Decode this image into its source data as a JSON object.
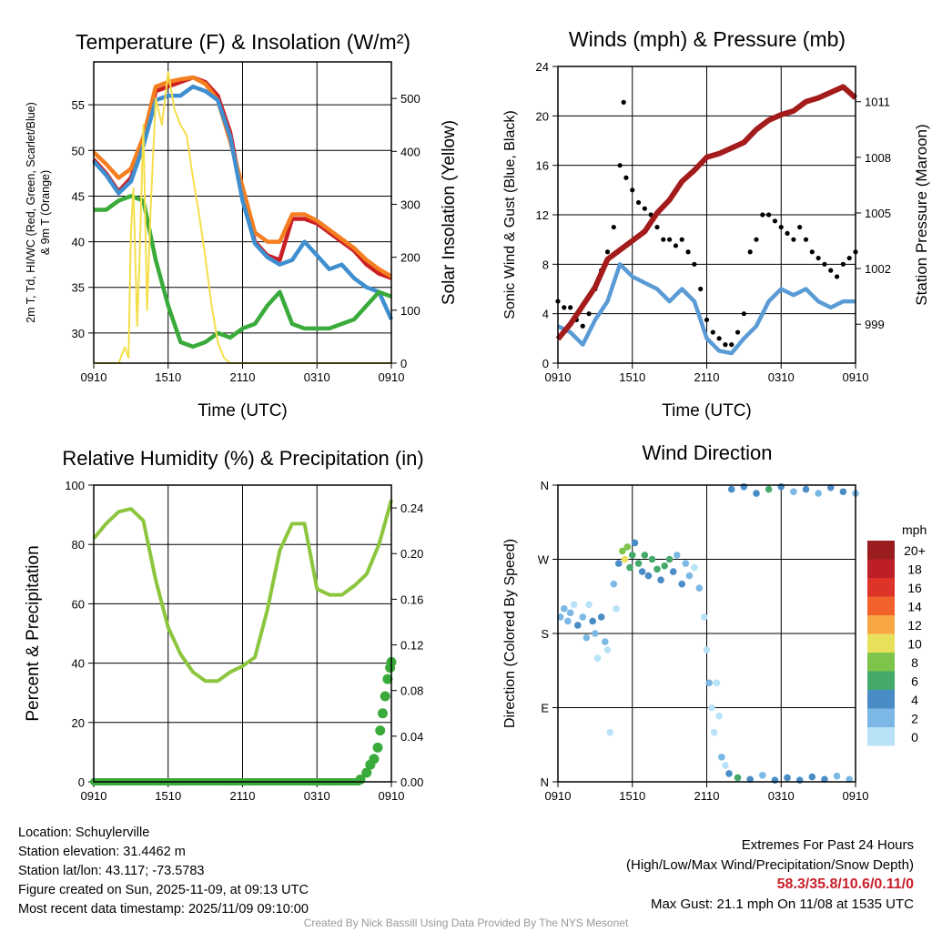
{
  "colors": {
    "temp": "#cc1f24",
    "temp9m": "#f57f20",
    "windchill": "#3f8fd0",
    "dewpoint": "#3aab3a",
    "insolation": "#f5de4a",
    "wind": "#5b9bd5",
    "gust": "#000000",
    "pressure": "#a31b1b",
    "rh": "#8cc63f",
    "precip": "#3aab3a"
  },
  "x_ticks": [
    "0910",
    "1510",
    "2110",
    "0310",
    "0910"
  ],
  "chart_data": [
    {
      "type": "line",
      "id": "temp",
      "title": "Temperature (F) & Insolation (W/m²)",
      "xlabel": "Time (UTC)",
      "ylabel": "2m T, Td, HI/WC (Red, Green, Scarlet/Blue)",
      "ylabel2": "& 9m T (Orange)",
      "y2label": "Solar Insolation (Yellow)",
      "xlim_hours": [
        0,
        24
      ],
      "ylim": [
        26.7,
        59.7
      ],
      "y2lim": [
        0,
        569
      ],
      "yticks": [
        30,
        35,
        40,
        45,
        50,
        55
      ],
      "y2ticks": [
        0,
        100,
        200,
        300,
        400,
        500
      ],
      "grid": true,
      "series": [
        {
          "name": "2m T",
          "color_key": "temp",
          "x": [
            0,
            1,
            2,
            3,
            4,
            5,
            6,
            7,
            8,
            9,
            10,
            11,
            12,
            13,
            14,
            15,
            16,
            17,
            18,
            19,
            20,
            21,
            22,
            23,
            24
          ],
          "values": [
            49,
            47.5,
            45.5,
            47,
            51,
            56.5,
            57,
            57.5,
            58,
            57.5,
            56,
            52,
            45,
            40,
            38.5,
            38,
            42.5,
            42.5,
            42,
            41,
            40,
            39,
            37.5,
            36.5,
            36
          ]
        },
        {
          "name": "9m T",
          "color_key": "temp9m",
          "x": [
            0,
            1,
            2,
            3,
            4,
            5,
            6,
            7,
            8,
            9,
            10,
            11,
            12,
            13,
            14,
            15,
            16,
            17,
            18,
            19,
            20,
            21,
            22,
            23,
            24
          ],
          "values": [
            49.8,
            48.5,
            47,
            48,
            51.5,
            57,
            57.5,
            57.8,
            58,
            57.3,
            55.5,
            51,
            46,
            41,
            40,
            40,
            43,
            43,
            42.3,
            41.3,
            40.3,
            39.3,
            38,
            37,
            36.2
          ]
        },
        {
          "name": "HI/WC",
          "color_key": "windchill",
          "x": [
            0,
            1,
            2,
            3,
            4,
            5,
            6,
            7,
            8,
            9,
            10,
            11,
            12,
            13,
            14,
            15,
            16,
            17,
            18,
            19,
            20,
            21,
            22,
            23,
            24
          ],
          "values": [
            48.8,
            47.3,
            45.3,
            46.6,
            50.5,
            55.5,
            56,
            56,
            57,
            56.5,
            55.5,
            51.5,
            44.5,
            39.8,
            38.3,
            37.5,
            38,
            40,
            38.5,
            37,
            37.5,
            36,
            35,
            34.5,
            31.5
          ]
        },
        {
          "name": "Td",
          "color_key": "dewpoint",
          "x": [
            0,
            1,
            2,
            3,
            4,
            5,
            6,
            7,
            8,
            9,
            10,
            11,
            12,
            13,
            14,
            15,
            16,
            17,
            18,
            19,
            20,
            21,
            22,
            23,
            24
          ],
          "values": [
            43.5,
            43.5,
            44.5,
            45,
            44.5,
            38,
            33,
            29,
            28.5,
            29,
            30,
            29.5,
            30.5,
            31,
            33,
            34.5,
            31,
            30.5,
            30.5,
            30.5,
            31,
            31.5,
            33,
            34.5,
            34
          ]
        },
        {
          "name": "Insolation",
          "color_key": "insolation",
          "axis": "y2",
          "x": [
            0,
            1,
            2,
            2.5,
            2.8,
            3,
            3.2,
            3.5,
            3.7,
            4,
            4.3,
            4.6,
            5,
            5.5,
            6,
            6.5,
            7,
            7.5,
            8,
            8.5,
            9,
            9.5,
            10,
            10.5,
            11,
            12,
            24
          ],
          "values": [
            0,
            0,
            0,
            30,
            10,
            250,
            330,
            70,
            200,
            450,
            100,
            300,
            500,
            450,
            550,
            480,
            450,
            430,
            350,
            280,
            200,
            110,
            40,
            10,
            0,
            0,
            0
          ]
        }
      ]
    },
    {
      "type": "line",
      "id": "wind",
      "title": "Winds (mph) & Pressure (mb)",
      "xlabel": "Time (UTC)",
      "ylabel": "Sonic Wind & Gust (Blue, Black)",
      "y2label": "Station Pressure (Maroon)",
      "ylim": [
        0,
        24
      ],
      "y2lim": [
        996.9,
        1012.9
      ],
      "yticks": [
        0,
        4,
        8,
        12,
        16,
        20,
        24
      ],
      "y2ticks": [
        999,
        1002,
        1005,
        1008,
        1011
      ],
      "grid": true,
      "series": [
        {
          "name": "Sonic Wind",
          "color_key": "wind",
          "x": [
            0,
            1,
            2,
            3,
            4,
            5,
            6,
            7,
            8,
            9,
            10,
            11,
            12,
            13,
            14,
            15,
            16,
            17,
            18,
            19,
            20,
            21,
            22,
            23,
            24
          ],
          "values": [
            3,
            2.5,
            1.5,
            3.5,
            5,
            8,
            7,
            6.5,
            6,
            5,
            6,
            5,
            2,
            1,
            0.8,
            2,
            3,
            5,
            6,
            5.5,
            6,
            5,
            4.5,
            5,
            5
          ]
        },
        {
          "name": "Gust",
          "color_key": "gust",
          "type": "scatter",
          "x": [
            0,
            0.5,
            1,
            1.5,
            2,
            2.5,
            3,
            3.5,
            4,
            4.5,
            5,
            5.3,
            5.5,
            6,
            6.5,
            7,
            7.5,
            8,
            8.5,
            9,
            9.5,
            10,
            10.5,
            11,
            11.5,
            12,
            12.5,
            13,
            13.5,
            14,
            14.5,
            15,
            15.5,
            16,
            16.5,
            17,
            17.5,
            18,
            18.5,
            19,
            19.5,
            20,
            20.5,
            21,
            21.5,
            22,
            22.5,
            23,
            23.5,
            24
          ],
          "values": [
            5,
            4.5,
            4.5,
            3.5,
            3,
            4,
            6,
            7.5,
            9,
            11,
            16,
            21.1,
            15,
            14,
            13,
            12.5,
            12,
            11,
            10,
            10,
            9.5,
            10,
            9,
            8,
            6,
            3.5,
            2.5,
            2,
            1.5,
            1.5,
            2.5,
            4,
            9,
            10,
            12,
            12,
            11.5,
            11,
            10.5,
            10,
            11,
            10,
            9,
            8.5,
            8,
            7.5,
            7,
            8,
            8.5,
            9
          ]
        },
        {
          "name": "Pressure",
          "color_key": "pressure",
          "axis": "y2",
          "x": [
            0,
            1,
            2,
            3,
            4,
            5,
            6,
            7,
            8,
            9,
            10,
            11,
            12,
            13,
            14,
            15,
            16,
            17,
            18,
            19,
            20,
            21,
            22,
            23,
            24
          ],
          "values": [
            998.2,
            999,
            1000,
            1001,
            1002.5,
            1003,
            1003.5,
            1004,
            1005,
            1005.7,
            1006.7,
            1007.3,
            1008,
            1008.2,
            1008.5,
            1008.8,
            1009.5,
            1010,
            1010.3,
            1010.5,
            1011,
            1011.2,
            1011.5,
            1011.8,
            1011.2
          ]
        }
      ]
    },
    {
      "type": "line",
      "id": "rh",
      "title": "Relative Humidity (%) & Precipitation (in)",
      "ylabel": "Percent & Precipitation",
      "ylim": [
        0,
        100
      ],
      "y2lim": [
        0,
        0.26
      ],
      "yticks": [
        0,
        20,
        40,
        60,
        80,
        100
      ],
      "y2ticks": [
        "0.00",
        "0.04",
        "0.08",
        "0.12",
        "0.16",
        "0.20",
        "0.24"
      ],
      "grid": true,
      "series": [
        {
          "name": "RH",
          "color_key": "rh",
          "x": [
            0,
            1,
            2,
            3,
            4,
            5,
            6,
            7,
            8,
            9,
            10,
            11,
            12,
            13,
            14,
            15,
            16,
            17,
            18,
            19,
            20,
            21,
            22,
            23,
            24
          ],
          "values": [
            82,
            87,
            91,
            92,
            88,
            68,
            52,
            43,
            37,
            34,
            34,
            37,
            39,
            42,
            58,
            78,
            87,
            87,
            65,
            63,
            63,
            66,
            70,
            80,
            95
          ]
        },
        {
          "name": "Precipitation",
          "color_key": "precip",
          "axis": "y2",
          "type": "scatter",
          "x": [
            0,
            1,
            2,
            3,
            4,
            5,
            6,
            7,
            8,
            9,
            10,
            11,
            12,
            13,
            14,
            15,
            16,
            17,
            18,
            19,
            20,
            21,
            21.5,
            22,
            22.3,
            22.6,
            22.9,
            23.1,
            23.3,
            23.5,
            23.7,
            23.9,
            24
          ],
          "values": [
            0,
            0,
            0,
            0,
            0,
            0,
            0,
            0,
            0,
            0,
            0,
            0,
            0,
            0,
            0,
            0,
            0,
            0,
            0,
            0,
            0,
            0,
            0.002,
            0.008,
            0.015,
            0.02,
            0.03,
            0.045,
            0.06,
            0.075,
            0.09,
            0.1,
            0.105
          ]
        }
      ]
    },
    {
      "type": "scatter",
      "id": "dir",
      "title": "Wind Direction",
      "ylabel": "Direction (Colored By Speed)",
      "ylim": [
        0,
        360
      ],
      "yticks": [
        "N",
        "E",
        "S",
        "W",
        "N"
      ],
      "legend_title": "mph",
      "legend": [
        {
          "label": "20+",
          "color": "#9b1c1f"
        },
        {
          "label": "18",
          "color": "#bd1f27"
        },
        {
          "label": "16",
          "color": "#dd3329"
        },
        {
          "label": "14",
          "color": "#f1622a"
        },
        {
          "label": "12",
          "color": "#f8a544"
        },
        {
          "label": "10",
          "color": "#e8e05a"
        },
        {
          "label": "8",
          "color": "#7ec34a"
        },
        {
          "label": "6",
          "color": "#45a96c"
        },
        {
          "label": "4",
          "color": "#4a8dc6"
        },
        {
          "label": "2",
          "color": "#7cb8e5"
        },
        {
          "label": "0",
          "color": "#b7e2f7"
        }
      ],
      "points": [
        [
          0.2,
          200,
          3
        ],
        [
          0.5,
          210,
          2
        ],
        [
          0.8,
          195,
          2
        ],
        [
          1,
          205,
          3
        ],
        [
          1.3,
          215,
          1
        ],
        [
          1.6,
          190,
          4
        ],
        [
          2,
          200,
          2
        ],
        [
          2.3,
          175,
          3
        ],
        [
          2.5,
          215,
          1
        ],
        [
          2.8,
          195,
          4
        ],
        [
          3,
          180,
          3
        ],
        [
          3.2,
          150,
          1
        ],
        [
          3.5,
          200,
          4
        ],
        [
          3.8,
          170,
          2
        ],
        [
          4,
          160,
          1
        ],
        [
          4.2,
          60,
          1
        ],
        [
          4.5,
          240,
          2
        ],
        [
          4.7,
          210,
          1
        ],
        [
          4.9,
          265,
          4
        ],
        [
          5.2,
          280,
          9
        ],
        [
          5.4,
          270,
          10
        ],
        [
          5.6,
          285,
          8
        ],
        [
          5.8,
          260,
          6
        ],
        [
          6,
          275,
          7
        ],
        [
          6.2,
          290,
          4
        ],
        [
          6.5,
          265,
          6
        ],
        [
          6.8,
          255,
          5
        ],
        [
          7,
          275,
          6
        ],
        [
          7.3,
          250,
          5
        ],
        [
          7.6,
          270,
          7
        ],
        [
          8,
          258,
          6
        ],
        [
          8.3,
          245,
          5
        ],
        [
          8.6,
          262,
          7
        ],
        [
          9,
          270,
          6
        ],
        [
          9.3,
          255,
          5
        ],
        [
          9.6,
          275,
          3
        ],
        [
          10,
          240,
          4
        ],
        [
          10.3,
          265,
          3
        ],
        [
          10.6,
          250,
          2
        ],
        [
          11,
          260,
          1
        ],
        [
          11.4,
          235,
          2
        ],
        [
          11.8,
          200,
          0
        ],
        [
          12,
          160,
          1
        ],
        [
          12.2,
          120,
          2
        ],
        [
          12.4,
          90,
          1
        ],
        [
          12.6,
          60,
          1
        ],
        [
          12.8,
          120,
          1
        ],
        [
          13,
          80,
          1
        ],
        [
          13.2,
          30,
          2
        ],
        [
          13.5,
          20,
          1
        ],
        [
          13.8,
          10,
          5
        ],
        [
          14,
          355,
          5
        ],
        [
          14.5,
          5,
          6
        ],
        [
          15,
          358,
          4
        ],
        [
          15.5,
          3,
          5
        ],
        [
          16,
          350,
          4
        ],
        [
          16.5,
          8,
          3
        ],
        [
          17,
          355,
          6
        ],
        [
          17.5,
          2,
          5
        ],
        [
          18,
          358,
          4
        ],
        [
          18.5,
          5,
          4
        ],
        [
          19,
          352,
          3
        ],
        [
          19.5,
          2,
          4
        ],
        [
          20,
          355,
          5
        ],
        [
          20.5,
          6,
          4
        ],
        [
          21,
          350,
          3
        ],
        [
          21.5,
          3,
          4
        ],
        [
          22,
          357,
          4
        ],
        [
          22.5,
          7,
          3
        ],
        [
          23,
          352,
          4
        ],
        [
          23.5,
          3,
          3
        ],
        [
          24,
          350,
          3
        ]
      ]
    }
  ],
  "info": {
    "location": "Location: Schuylerville",
    "elevation": "Station elevation: 31.4462 m",
    "latlon": "Station lat/lon: 43.117; -73.5783",
    "created": "Figure created on Sun, 2025-11-09, at 09:13 UTC",
    "recent": "Most recent data timestamp: 2025/11/09 09:10:00"
  },
  "extremes": {
    "title": "Extremes For Past 24 Hours",
    "subtitle": "(High/Low/Max Wind/Precipitation/Snow Depth)",
    "values": "58.3/35.8/10.6/0.11/0",
    "max_gust": "Max Gust: 21.1 mph On 11/08 at 1535 UTC"
  },
  "credit": "Created By Nick Bassill Using Data Provided By The NYS Mesonet"
}
